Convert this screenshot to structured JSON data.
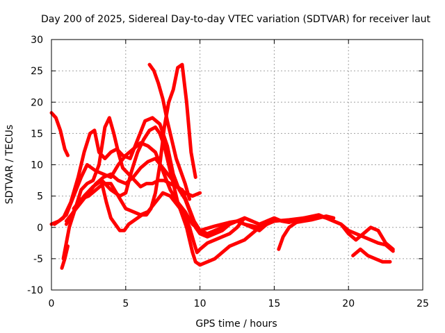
{
  "chart_data": {
    "type": "line",
    "title": "Day 200 of 2025, Sidereal Day-to-day VTEC variation (SDTVAR) for receiver laut",
    "xlabel": "GPS time / hours",
    "ylabel": "SDTVAR / TECUs",
    "xlim": [
      0,
      25
    ],
    "ylim": [
      -10,
      30
    ],
    "xticks": [
      0,
      5,
      10,
      15,
      20,
      25
    ],
    "yticks": [
      -10,
      -5,
      0,
      5,
      10,
      15,
      20,
      25,
      30
    ],
    "grid": true,
    "legend": "none",
    "color": "#ff0000",
    "series": [
      {
        "name": "trace-1",
        "x": [
          0,
          0.3,
          0.6,
          0.9,
          1.1
        ],
        "y": [
          18.3,
          17.5,
          15.5,
          12.5,
          11.5
        ]
      },
      {
        "name": "trace-2",
        "x": [
          0,
          0.5,
          1.0,
          1.5,
          2.0,
          2.4,
          2.7,
          3.0,
          3.5,
          4.0,
          4.5,
          5.0,
          5.5,
          6.0,
          6.5,
          7.0,
          7.5,
          8.0,
          8.5,
          9.0,
          9.5,
          10.0,
          11.0,
          12.0,
          12.5,
          13.0,
          14.0,
          15.0,
          16.0,
          17.0,
          18.0,
          18.5,
          19.0,
          19.5,
          20.0,
          20.5,
          21.0,
          21.5,
          22.0,
          22.5,
          23.0
        ],
        "y": [
          0.5,
          1.0,
          2.0,
          5.0,
          8.0,
          10.0,
          9.5,
          9.0,
          8.5,
          8.0,
          10.0,
          11.5,
          12.5,
          13.5,
          13.0,
          12.0,
          9.0,
          6.0,
          4.0,
          2.5,
          0.5,
          -0.5,
          0.2,
          0.8,
          1.0,
          0.5,
          0.0,
          1.0,
          1.2,
          1.5,
          2.0,
          1.5,
          1.0,
          0.5,
          -1.0,
          -2.0,
          -1.0,
          0.0,
          -0.5,
          -2.5,
          -3.5
        ]
      },
      {
        "name": "trace-3",
        "x": [
          0.2,
          0.8,
          1.3,
          1.8,
          2.2,
          2.6,
          2.9,
          3.2,
          3.6,
          4.0,
          4.4,
          4.8,
          5.3,
          5.8,
          6.3,
          6.8,
          7.3,
          7.8,
          8.2,
          8.6,
          9.0,
          9.4,
          9.7,
          10.0,
          10.5,
          11.0,
          11.5,
          12.0,
          12.5,
          13.0,
          13.5,
          14.0,
          14.5,
          15.0,
          15.5,
          16.0,
          16.5,
          17.0,
          17.5,
          18.0,
          18.5,
          19.0,
          19.5,
          20.0,
          20.5,
          21.0,
          21.5,
          22.0,
          22.5,
          23.0
        ],
        "y": [
          0.5,
          1.5,
          4.0,
          8.0,
          12.0,
          15.0,
          15.5,
          12.0,
          11.0,
          12.0,
          12.5,
          11.5,
          11.0,
          14.0,
          17.0,
          17.5,
          16.5,
          13.0,
          8.5,
          6.0,
          4.5,
          2.0,
          0.0,
          -1.0,
          -1.5,
          -1.0,
          -0.5,
          0.5,
          1.0,
          1.5,
          1.0,
          0.5,
          1.0,
          1.5,
          1.0,
          0.8,
          1.2,
          1.5,
          1.5,
          1.8,
          1.5,
          1.0,
          0.5,
          -0.5,
          -1.0,
          -1.5,
          -2.0,
          -2.5,
          -2.8,
          -3.8
        ]
      },
      {
        "name": "trace-4",
        "x": [
          0.8,
          1.2,
          1.6,
          2.0,
          2.4,
          2.8,
          3.2,
          3.6,
          3.9,
          4.2,
          4.5,
          4.8,
          5.2,
          5.6,
          6.0,
          6.4,
          6.8,
          7.2,
          7.6,
          8.0,
          8.4,
          8.8,
          9.2,
          9.6,
          10.0,
          10.5,
          11.0,
          11.5,
          12.0,
          12.5,
          13.0,
          13.5,
          14.0,
          14.5,
          15.0
        ],
        "y": [
          -5.0,
          0.0,
          3.0,
          6.0,
          7.0,
          7.5,
          10.0,
          16.0,
          17.5,
          15.0,
          12.0,
          9.5,
          8.5,
          7.5,
          6.5,
          7.0,
          7.0,
          7.5,
          7.5,
          7.0,
          6.5,
          6.0,
          3.5,
          1.0,
          -0.5,
          -1.0,
          -0.5,
          0.0,
          0.5,
          1.0,
          0.5,
          0.0,
          -0.5,
          0.5,
          1.0
        ]
      },
      {
        "name": "trace-5",
        "x": [
          1.5,
          2.0,
          2.5,
          3.0,
          3.5,
          4.0,
          4.5,
          5.0,
          5.5,
          6.0,
          6.5,
          7.0,
          7.5,
          8.0,
          8.5,
          9.0,
          9.3,
          9.6,
          9.8,
          10.0,
          10.5,
          11.0,
          11.5,
          12.0,
          12.5,
          13.0,
          13.5
        ],
        "y": [
          3.0,
          4.5,
          5.0,
          6.0,
          7.0,
          7.0,
          5.0,
          3.0,
          2.5,
          2.0,
          2.5,
          4.0,
          5.5,
          5.0,
          3.5,
          2.0,
          0.0,
          -2.5,
          -4.0,
          -3.5,
          -2.5,
          -2.0,
          -1.5,
          -1.0,
          0.0,
          1.5,
          1.0
        ]
      },
      {
        "name": "trace-6",
        "x": [
          1.0,
          1.6,
          2.2,
          2.8,
          3.4,
          4.0,
          4.6,
          5.0,
          5.4,
          5.8,
          6.2,
          6.6,
          7.0,
          7.3,
          7.6,
          7.9,
          8.2,
          8.5,
          8.8,
          9.1,
          9.3,
          9.5,
          9.7,
          10.0,
          10.5,
          11.0,
          11.5,
          12.0,
          12.5,
          13.0,
          13.5,
          14.0
        ],
        "y": [
          0.5,
          3.0,
          5.0,
          6.5,
          7.5,
          6.0,
          5.0,
          5.5,
          9.0,
          12.0,
          14.0,
          15.5,
          16.0,
          15.0,
          13.0,
          10.0,
          7.0,
          4.0,
          2.0,
          0.0,
          -2.0,
          -4.0,
          -5.5,
          -6.0,
          -5.5,
          -5.0,
          -4.0,
          -3.0,
          -2.5,
          -2.0,
          -1.0,
          0.0
        ]
      },
      {
        "name": "trace-7",
        "x": [
          1.0,
          1.5,
          2.0,
          2.5,
          3.0,
          3.5,
          4.0,
          4.5,
          5.0,
          5.5,
          6.0,
          6.5,
          7.0,
          7.5,
          8.0,
          8.5,
          9.0,
          9.5,
          10.0
        ],
        "y": [
          1.0,
          2.5,
          4.0,
          5.5,
          7.0,
          8.0,
          8.5,
          7.5,
          7.0,
          8.0,
          9.5,
          10.5,
          11.0,
          9.5,
          8.0,
          6.5,
          5.5,
          5.0,
          5.5
        ]
      },
      {
        "name": "trace-8",
        "x": [
          3.4,
          3.7,
          4.0,
          4.3,
          4.6,
          4.9,
          5.2,
          5.5,
          5.8,
          6.1,
          6.4,
          6.7,
          7.0,
          7.3,
          7.6,
          7.9,
          8.2,
          8.5,
          8.8,
          9.1,
          9.4,
          9.7
        ],
        "y": [
          7.0,
          4.0,
          1.5,
          0.5,
          -0.5,
          -0.5,
          0.5,
          1.0,
          1.5,
          2.0,
          2.0,
          3.0,
          5.5,
          10.0,
          16.0,
          20.0,
          22.0,
          25.5,
          26.0,
          20.0,
          12.0,
          8.0
        ]
      },
      {
        "name": "trace-9",
        "x": [
          0.7,
          0.9,
          1.1
        ],
        "y": [
          -6.5,
          -5.0,
          -3.0
        ]
      },
      {
        "name": "trace-10",
        "x": [
          6.6,
          6.9,
          7.2,
          7.5,
          7.8,
          8.1,
          8.4,
          8.7,
          9.0,
          9.3
        ],
        "y": [
          26.0,
          25.0,
          23.0,
          20.5,
          17.0,
          14.0,
          11.0,
          9.0,
          7.0,
          4.5
        ]
      },
      {
        "name": "trace-11",
        "x": [
          15.3,
          15.6,
          16.0,
          16.5,
          17.0,
          17.5,
          18.0,
          18.5,
          19.0
        ],
        "y": [
          -3.5,
          -1.5,
          0.0,
          0.8,
          1.0,
          1.2,
          1.5,
          1.8,
          1.5
        ]
      },
      {
        "name": "trace-12",
        "x": [
          20.3,
          20.8,
          21.3,
          21.8,
          22.3,
          22.8
        ],
        "y": [
          -4.5,
          -3.5,
          -4.5,
          -5.0,
          -5.5,
          -5.5
        ]
      }
    ]
  }
}
